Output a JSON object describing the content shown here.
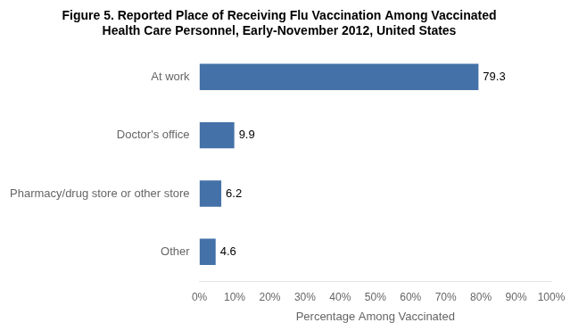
{
  "chart_data": {
    "type": "bar",
    "orientation": "horizontal",
    "title": "Figure 5. Reported Place of Receiving Flu Vaccination Among Vaccinated\nHealth Care Personnel, Early-November 2012, United States",
    "categories": [
      "Other",
      "Pharmacy/drug store or other store",
      "Doctor's office",
      "At work"
    ],
    "values": [
      4.6,
      6.2,
      9.9,
      79.3
    ],
    "color": "#4472A8",
    "xlabel": "Percentage Among Vaccinated",
    "xlim": [
      0,
      100
    ],
    "xticks": [
      {
        "value": 0,
        "label": "0%"
      },
      {
        "value": 10,
        "label": "10%"
      },
      {
        "value": 20,
        "label": "20%"
      },
      {
        "value": 30,
        "label": "30%"
      },
      {
        "value": 40,
        "label": "40%"
      },
      {
        "value": 50,
        "label": "50%"
      },
      {
        "value": 60,
        "label": "60%"
      },
      {
        "value": 70,
        "label": "70%"
      },
      {
        "value": 80,
        "label": "80%"
      },
      {
        "value": 90,
        "label": "90%"
      },
      {
        "value": 100,
        "label": "100%"
      }
    ],
    "data_labels": true,
    "grid": false
  }
}
